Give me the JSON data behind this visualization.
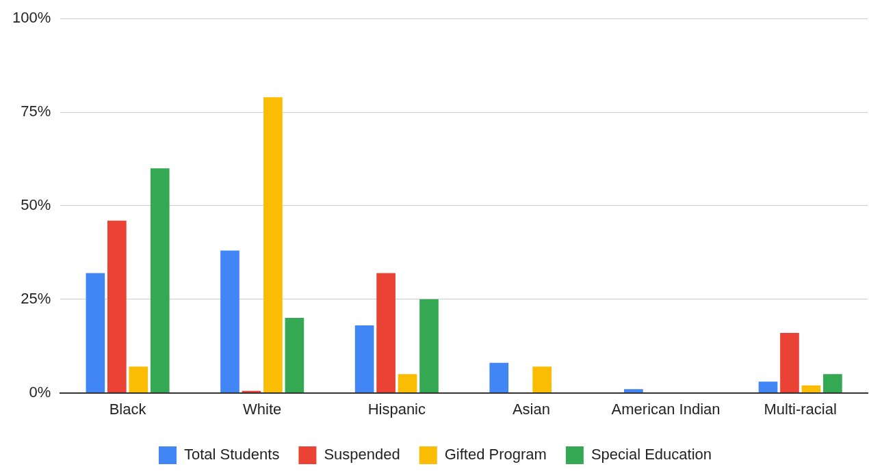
{
  "chart_data": {
    "type": "bar",
    "categories": [
      "Black",
      "White",
      "Hispanic",
      "Asian",
      "American Indian",
      "Multi-racial"
    ],
    "series": [
      {
        "name": "Total Students",
        "color": "#4285f4",
        "values": [
          32,
          38,
          18,
          8,
          1,
          3
        ]
      },
      {
        "name": "Suspended",
        "color": "#ea4335",
        "values": [
          46,
          0.5,
          32,
          0,
          0,
          16
        ]
      },
      {
        "name": "Gifted Program",
        "color": "#fbbc04",
        "values": [
          7,
          79,
          5,
          7,
          0,
          2
        ]
      },
      {
        "name": "Special Education",
        "color": "#34a853",
        "values": [
          60,
          20,
          25,
          0,
          0,
          5
        ]
      }
    ],
    "ylim": [
      0,
      100
    ],
    "yticks": [
      {
        "value": 0,
        "label": "0%"
      },
      {
        "value": 25,
        "label": "25%"
      },
      {
        "value": 50,
        "label": "50%"
      },
      {
        "value": 75,
        "label": "75%"
      },
      {
        "value": 100,
        "label": "100%"
      }
    ],
    "grid": "y",
    "legend": "bottom"
  }
}
